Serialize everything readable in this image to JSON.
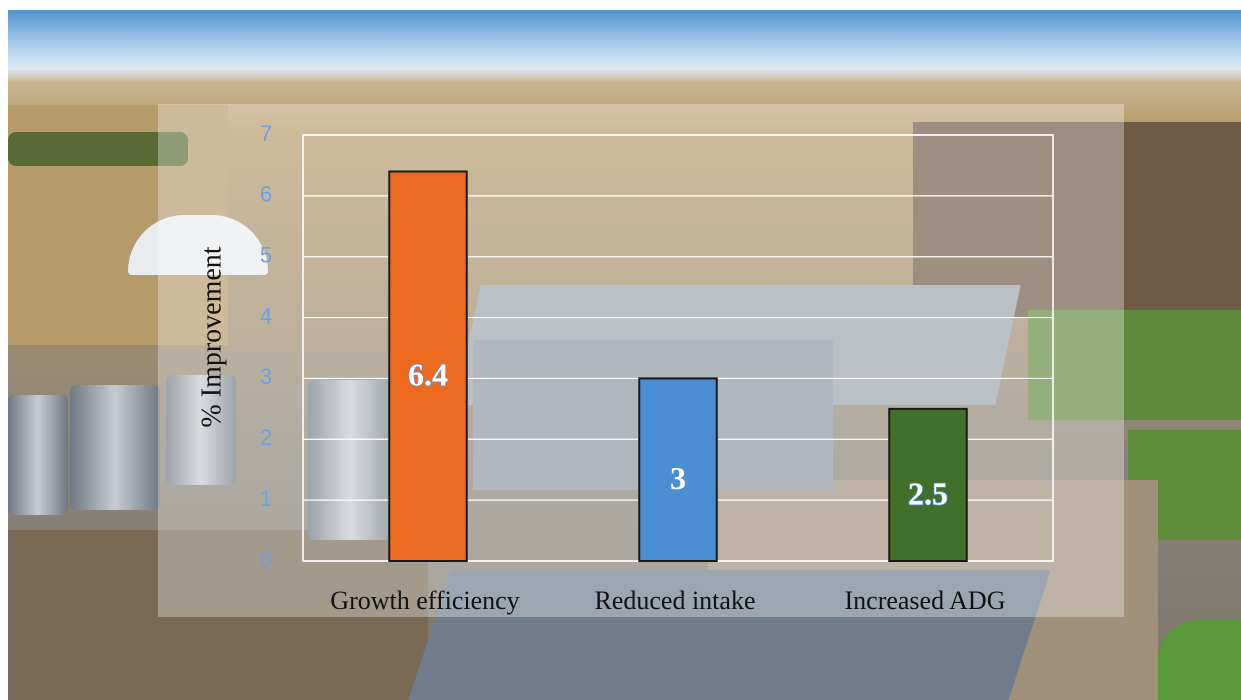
{
  "chart_data": {
    "type": "bar",
    "title": "",
    "xlabel": "",
    "ylabel": "% Improvement",
    "categories": [
      "Growth efficiency",
      "Reduced intake",
      "Increased ADG"
    ],
    "values": [
      6.4,
      3,
      2.5
    ],
    "data_labels": [
      "6.4",
      "3",
      "2.5"
    ],
    "bar_colors": [
      "#ee6a21",
      "#4a8fd4",
      "#41702a"
    ],
    "ylim": [
      0,
      7
    ],
    "yticks": [
      "0",
      "1",
      "2",
      "3",
      "4",
      "5",
      "6",
      "7"
    ],
    "grid": true,
    "legend": "none",
    "background": "aerial photo of a feedlot"
  },
  "colors": {
    "tick_label": "#6aa0e6",
    "data_label_fill": "#ffffff",
    "data_label_stroke": "#5a8fd0",
    "grid": "#ffffff"
  }
}
